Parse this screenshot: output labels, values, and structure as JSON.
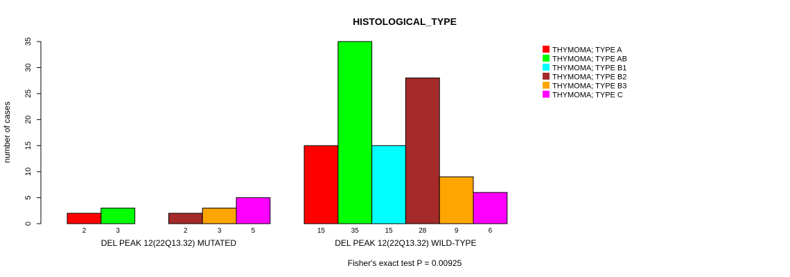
{
  "chart_data": {
    "type": "bar",
    "title": "HISTOLOGICAL_TYPE",
    "ylabel": "number of cases",
    "ylim": [
      0,
      35
    ],
    "yticks": [
      0,
      5,
      10,
      15,
      20,
      25,
      30,
      35
    ],
    "groups": [
      "DEL PEAK 12(22Q13.32) MUTATED",
      "DEL PEAK 12(22Q13.32) WILD-TYPE"
    ],
    "series": [
      {
        "name": "THYMOMA; TYPE A",
        "color": "#ff0000",
        "values": [
          2,
          15
        ]
      },
      {
        "name": "THYMOMA; TYPE AB",
        "color": "#00ff00",
        "values": [
          3,
          35
        ]
      },
      {
        "name": "THYMOMA; TYPE B1",
        "color": "#00ffff",
        "values": [
          0,
          15
        ]
      },
      {
        "name": "THYMOMA; TYPE B2",
        "color": "#a52a2a",
        "values": [
          2,
          28
        ]
      },
      {
        "name": "THYMOMA; TYPE B3",
        "color": "#ffa500",
        "values": [
          3,
          9
        ]
      },
      {
        "name": "THYMOMA; TYPE C",
        "color": "#ff00ff",
        "values": [
          5,
          6
        ]
      }
    ],
    "legend_position": "top-right",
    "footnote": "Fisher's exact test P = 0.00925"
  }
}
